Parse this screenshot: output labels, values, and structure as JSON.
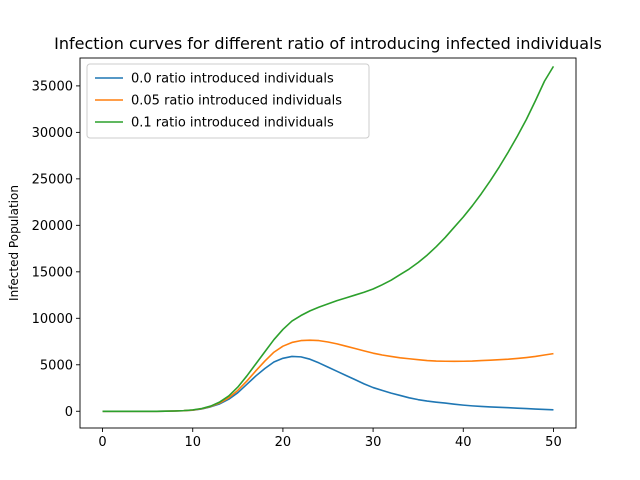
{
  "chart_data": {
    "type": "line",
    "title": "Infection curves for different ratio of introducing infected individuals",
    "xlabel": "",
    "ylabel": "Infected Population",
    "xlim": [
      -2.5,
      52.5
    ],
    "ylim": [
      -1800,
      38000
    ],
    "x_ticks": [
      0,
      10,
      20,
      30,
      40,
      50
    ],
    "y_ticks": [
      0,
      5000,
      10000,
      15000,
      20000,
      25000,
      30000,
      35000
    ],
    "grid": false,
    "legend_position": "top-left",
    "x": [
      0,
      1,
      2,
      3,
      4,
      5,
      6,
      7,
      8,
      9,
      10,
      11,
      12,
      13,
      14,
      15,
      16,
      17,
      18,
      19,
      20,
      21,
      22,
      23,
      24,
      25,
      26,
      27,
      28,
      29,
      30,
      31,
      32,
      33,
      34,
      35,
      36,
      37,
      38,
      39,
      40,
      41,
      42,
      43,
      44,
      45,
      46,
      47,
      48,
      49,
      50
    ],
    "series": [
      {
        "name": "0.0 ratio introduced individuals",
        "color": "#1f77b4",
        "values": [
          0,
          0,
          0,
          0,
          0,
          0,
          0,
          10,
          30,
          60,
          120,
          250,
          480,
          800,
          1300,
          2000,
          2900,
          3800,
          4600,
          5300,
          5700,
          5900,
          5850,
          5600,
          5200,
          4750,
          4300,
          3850,
          3400,
          2950,
          2550,
          2250,
          1950,
          1700,
          1450,
          1250,
          1100,
          980,
          880,
          760,
          660,
          580,
          520,
          470,
          420,
          380,
          330,
          290,
          240,
          200,
          160
        ]
      },
      {
        "name": "0.05 ratio introduced individuals",
        "color": "#ff7f0e",
        "values": [
          0,
          0,
          0,
          0,
          0,
          0,
          0,
          10,
          30,
          60,
          130,
          270,
          520,
          900,
          1450,
          2250,
          3250,
          4350,
          5400,
          6350,
          7000,
          7400,
          7600,
          7650,
          7600,
          7450,
          7250,
          7000,
          6750,
          6500,
          6250,
          6050,
          5900,
          5750,
          5650,
          5550,
          5450,
          5400,
          5380,
          5370,
          5380,
          5400,
          5450,
          5500,
          5550,
          5600,
          5680,
          5780,
          5900,
          6050,
          6200
        ]
      },
      {
        "name": "0.1 ratio introduced individuals",
        "color": "#2ca02c",
        "values": [
          0,
          0,
          0,
          0,
          0,
          0,
          0,
          10,
          30,
          70,
          150,
          300,
          560,
          1000,
          1650,
          2600,
          3800,
          5100,
          6400,
          7700,
          8800,
          9700,
          10300,
          10800,
          11200,
          11550,
          11900,
          12200,
          12500,
          12800,
          13150,
          13600,
          14100,
          14700,
          15300,
          16000,
          16800,
          17700,
          18700,
          19800,
          20900,
          22100,
          23400,
          24800,
          26300,
          27900,
          29600,
          31400,
          33400,
          35500,
          37100
        ]
      }
    ]
  }
}
